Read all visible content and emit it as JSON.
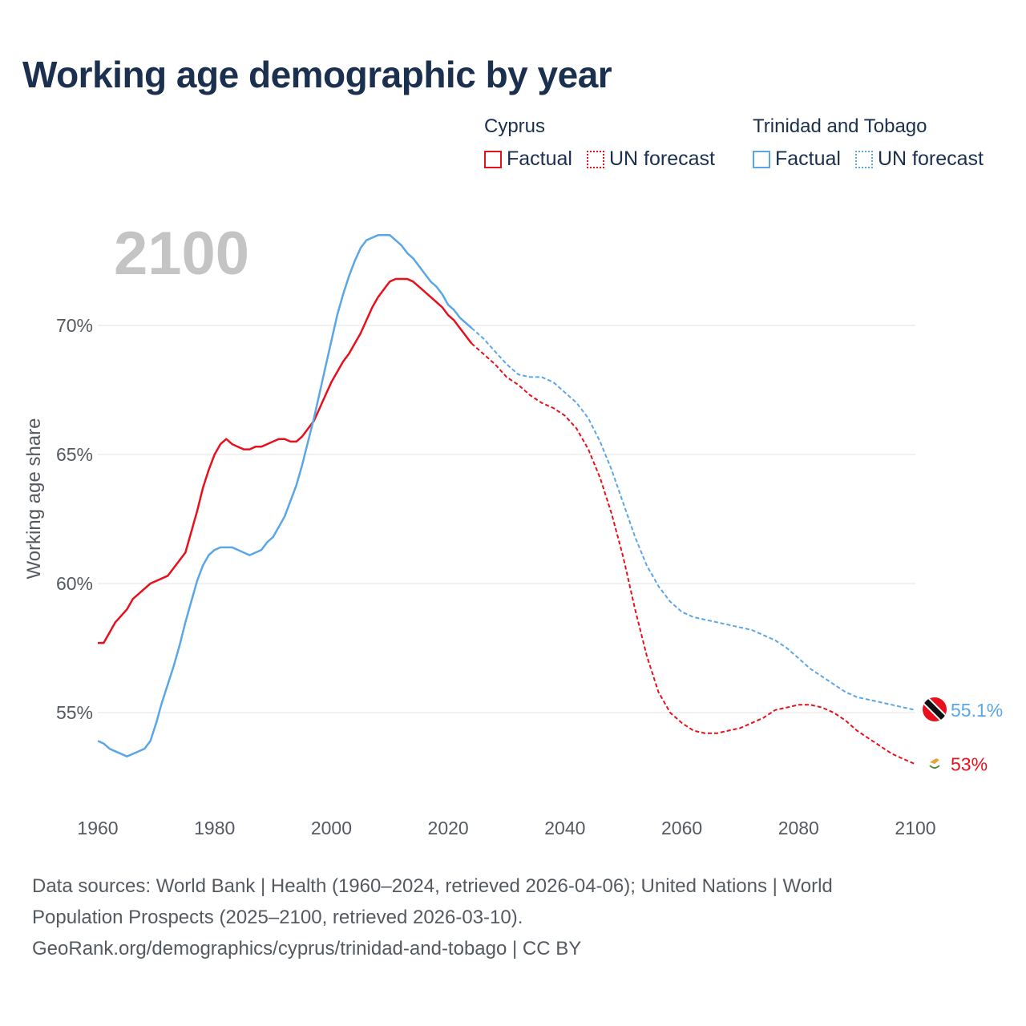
{
  "title": "Working age demographic by year",
  "year_label": "2100",
  "legend": {
    "groups": [
      {
        "country": "Cyprus",
        "color": "#e8101c",
        "factual": "Factual",
        "forecast": "UN forecast"
      },
      {
        "country": "Trinidad and Tobago",
        "color": "#5aa6e6",
        "factual": "Factual",
        "forecast": "UN forecast"
      }
    ]
  },
  "sources": {
    "line1": "Data sources: World Bank | Health (1960–2024, retrieved 2026-04-06); United Nations | World",
    "line2": "Population Prospects (2025–2100, retrieved 2026-03-10).",
    "line3": "GeoRank.org/demographics/cyprus/trinidad-and-tobago | CC BY"
  },
  "chart_data": {
    "type": "line",
    "title": "Working age demographic by year",
    "xlabel": "",
    "ylabel": "Working age share",
    "xlim": [
      1960,
      2100
    ],
    "ylim": [
      51.5,
      73.5
    ],
    "x_ticks": [
      1960,
      1980,
      2000,
      2020,
      2040,
      2060,
      2080,
      2100
    ],
    "y_ticks": [
      55,
      60,
      65,
      70
    ],
    "y_tick_labels": [
      "55%",
      "60%",
      "65%",
      "70%"
    ],
    "forecast_start": 2024,
    "grid": true,
    "series": [
      {
        "name": "Cyprus",
        "color": "#e8101c",
        "end_label": "53%",
        "points": [
          [
            1960,
            57.7
          ],
          [
            1961,
            57.7
          ],
          [
            1962,
            58.1
          ],
          [
            1963,
            58.5
          ],
          [
            1965,
            59.0
          ],
          [
            1966,
            59.4
          ],
          [
            1968,
            59.8
          ],
          [
            1969,
            60.0
          ],
          [
            1972,
            60.3
          ],
          [
            1975,
            61.2
          ],
          [
            1976,
            62.0
          ],
          [
            1977,
            62.8
          ],
          [
            1978,
            63.7
          ],
          [
            1979,
            64.4
          ],
          [
            1980,
            65.0
          ],
          [
            1981,
            65.4
          ],
          [
            1982,
            65.6
          ],
          [
            1983,
            65.4
          ],
          [
            1985,
            65.2
          ],
          [
            1986,
            65.2
          ],
          [
            1987,
            65.3
          ],
          [
            1988,
            65.3
          ],
          [
            1989,
            65.4
          ],
          [
            1990,
            65.5
          ],
          [
            1991,
            65.6
          ],
          [
            1992,
            65.6
          ],
          [
            1993,
            65.5
          ],
          [
            1994,
            65.5
          ],
          [
            1995,
            65.7
          ],
          [
            1996,
            66.0
          ],
          [
            1997,
            66.3
          ],
          [
            1998,
            66.8
          ],
          [
            1999,
            67.3
          ],
          [
            2000,
            67.8
          ],
          [
            2001,
            68.2
          ],
          [
            2002,
            68.6
          ],
          [
            2003,
            68.9
          ],
          [
            2004,
            69.3
          ],
          [
            2005,
            69.7
          ],
          [
            2006,
            70.2
          ],
          [
            2007,
            70.7
          ],
          [
            2008,
            71.1
          ],
          [
            2009,
            71.4
          ],
          [
            2010,
            71.7
          ],
          [
            2011,
            71.8
          ],
          [
            2013,
            71.8
          ],
          [
            2014,
            71.7
          ],
          [
            2015,
            71.5
          ],
          [
            2016,
            71.3
          ],
          [
            2017,
            71.1
          ],
          [
            2018,
            70.9
          ],
          [
            2019,
            70.7
          ],
          [
            2020,
            70.4
          ],
          [
            2021,
            70.2
          ],
          [
            2022,
            69.9
          ],
          [
            2023,
            69.6
          ],
          [
            2024,
            69.3
          ],
          [
            2026,
            68.9
          ],
          [
            2028,
            68.5
          ],
          [
            2030,
            68.0
          ],
          [
            2032,
            67.7
          ],
          [
            2034,
            67.3
          ],
          [
            2036,
            67.0
          ],
          [
            2038,
            66.8
          ],
          [
            2040,
            66.5
          ],
          [
            2042,
            66.0
          ],
          [
            2044,
            65.2
          ],
          [
            2046,
            64.1
          ],
          [
            2048,
            62.7
          ],
          [
            2050,
            61.0
          ],
          [
            2052,
            59.0
          ],
          [
            2054,
            57.2
          ],
          [
            2056,
            55.8
          ],
          [
            2058,
            55.0
          ],
          [
            2060,
            54.6
          ],
          [
            2062,
            54.3
          ],
          [
            2064,
            54.2
          ],
          [
            2066,
            54.2
          ],
          [
            2068,
            54.3
          ],
          [
            2070,
            54.4
          ],
          [
            2072,
            54.6
          ],
          [
            2074,
            54.8
          ],
          [
            2076,
            55.1
          ],
          [
            2078,
            55.2
          ],
          [
            2080,
            55.3
          ],
          [
            2082,
            55.3
          ],
          [
            2084,
            55.2
          ],
          [
            2086,
            55.0
          ],
          [
            2088,
            54.7
          ],
          [
            2090,
            54.3
          ],
          [
            2092,
            54.0
          ],
          [
            2094,
            53.7
          ],
          [
            2096,
            53.4
          ],
          [
            2098,
            53.2
          ],
          [
            2100,
            53.0
          ]
        ]
      },
      {
        "name": "Trinidad and Tobago",
        "color": "#5aa6e6",
        "end_label": "55.1%",
        "points": [
          [
            1960,
            53.9
          ],
          [
            1961,
            53.8
          ],
          [
            1962,
            53.6
          ],
          [
            1963,
            53.5
          ],
          [
            1965,
            53.3
          ],
          [
            1966,
            53.4
          ],
          [
            1968,
            53.6
          ],
          [
            1969,
            53.9
          ],
          [
            1970,
            54.6
          ],
          [
            1971,
            55.4
          ],
          [
            1972,
            56.1
          ],
          [
            1973,
            56.8
          ],
          [
            1974,
            57.6
          ],
          [
            1975,
            58.5
          ],
          [
            1976,
            59.3
          ],
          [
            1977,
            60.1
          ],
          [
            1978,
            60.7
          ],
          [
            1979,
            61.1
          ],
          [
            1980,
            61.3
          ],
          [
            1981,
            61.4
          ],
          [
            1983,
            61.4
          ],
          [
            1984,
            61.3
          ],
          [
            1986,
            61.1
          ],
          [
            1987,
            61.2
          ],
          [
            1988,
            61.3
          ],
          [
            1989,
            61.6
          ],
          [
            1990,
            61.8
          ],
          [
            1991,
            62.2
          ],
          [
            1992,
            62.6
          ],
          [
            1993,
            63.2
          ],
          [
            1994,
            63.8
          ],
          [
            1995,
            64.6
          ],
          [
            1996,
            65.5
          ],
          [
            1997,
            66.4
          ],
          [
            1998,
            67.4
          ],
          [
            1999,
            68.4
          ],
          [
            2000,
            69.4
          ],
          [
            2001,
            70.4
          ],
          [
            2002,
            71.2
          ],
          [
            2003,
            71.9
          ],
          [
            2004,
            72.5
          ],
          [
            2005,
            73.0
          ],
          [
            2006,
            73.3
          ],
          [
            2007,
            73.4
          ],
          [
            2008,
            73.5
          ],
          [
            2009,
            73.5
          ],
          [
            2010,
            73.5
          ],
          [
            2011,
            73.3
          ],
          [
            2012,
            73.1
          ],
          [
            2013,
            72.8
          ],
          [
            2014,
            72.6
          ],
          [
            2015,
            72.3
          ],
          [
            2016,
            72.0
          ],
          [
            2017,
            71.7
          ],
          [
            2018,
            71.5
          ],
          [
            2019,
            71.2
          ],
          [
            2020,
            70.8
          ],
          [
            2021,
            70.6
          ],
          [
            2022,
            70.3
          ],
          [
            2023,
            70.1
          ],
          [
            2024,
            69.9
          ],
          [
            2026,
            69.5
          ],
          [
            2028,
            69.0
          ],
          [
            2030,
            68.5
          ],
          [
            2032,
            68.1
          ],
          [
            2034,
            68.0
          ],
          [
            2036,
            68.0
          ],
          [
            2038,
            67.8
          ],
          [
            2040,
            67.4
          ],
          [
            2042,
            67.0
          ],
          [
            2044,
            66.4
          ],
          [
            2046,
            65.5
          ],
          [
            2048,
            64.4
          ],
          [
            2050,
            63.1
          ],
          [
            2052,
            61.8
          ],
          [
            2054,
            60.7
          ],
          [
            2056,
            59.9
          ],
          [
            2058,
            59.3
          ],
          [
            2060,
            58.9
          ],
          [
            2062,
            58.7
          ],
          [
            2064,
            58.6
          ],
          [
            2066,
            58.5
          ],
          [
            2068,
            58.4
          ],
          [
            2070,
            58.3
          ],
          [
            2072,
            58.2
          ],
          [
            2074,
            58.0
          ],
          [
            2076,
            57.8
          ],
          [
            2078,
            57.5
          ],
          [
            2080,
            57.1
          ],
          [
            2082,
            56.7
          ],
          [
            2084,
            56.4
          ],
          [
            2086,
            56.1
          ],
          [
            2088,
            55.8
          ],
          [
            2090,
            55.6
          ],
          [
            2092,
            55.5
          ],
          [
            2094,
            55.4
          ],
          [
            2096,
            55.3
          ],
          [
            2098,
            55.2
          ],
          [
            2100,
            55.1
          ]
        ]
      }
    ]
  }
}
